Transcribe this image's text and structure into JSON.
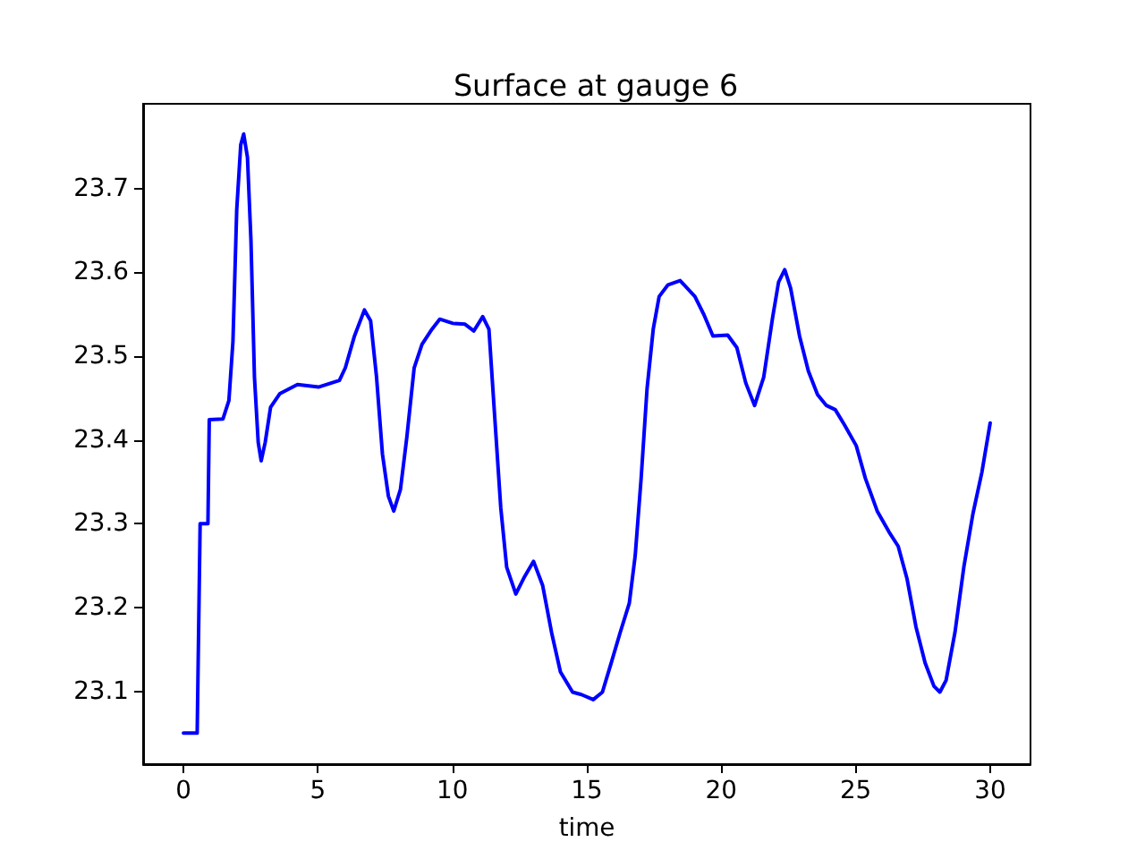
{
  "chart_data": {
    "type": "line",
    "title": "Surface at gauge 6",
    "xlabel": "time",
    "x": [
      0,
      0.51,
      0.62,
      0.91,
      0.96,
      1.47,
      1.69,
      1.84,
      1.98,
      2.13,
      2.24,
      2.38,
      2.51,
      2.64,
      2.78,
      2.89,
      3.04,
      3.24,
      3.58,
      4.24,
      5.02,
      5.8,
      6.02,
      6.36,
      6.73,
      6.96,
      7.18,
      7.4,
      7.62,
      7.82,
      8.07,
      8.31,
      8.58,
      8.87,
      9.24,
      9.53,
      10.02,
      10.47,
      10.8,
      11.13,
      11.36,
      11.58,
      11.8,
      12.02,
      12.36,
      12.69,
      13.02,
      13.36,
      13.69,
      14.02,
      14.47,
      14.8,
      15.24,
      15.58,
      15.91,
      16.24,
      16.58,
      16.8,
      17.02,
      17.24,
      17.47,
      17.69,
      18.02,
      18.47,
      19.02,
      19.36,
      19.69,
      20.24,
      20.58,
      20.91,
      21.24,
      21.58,
      21.91,
      22.13,
      22.36,
      22.58,
      22.91,
      23.24,
      23.58,
      23.91,
      24.24,
      24.58,
      25.02,
      25.36,
      25.8,
      26.24,
      26.58,
      26.91,
      27.24,
      27.58,
      27.91,
      28.13,
      28.36,
      28.69,
      29.02,
      29.36,
      29.69,
      30
    ],
    "values": [
      23.05,
      23.05,
      23.3,
      23.3,
      23.424,
      23.425,
      23.447,
      23.517,
      23.674,
      23.752,
      23.765,
      23.737,
      23.638,
      23.475,
      23.397,
      23.375,
      23.397,
      23.439,
      23.455,
      23.466,
      23.463,
      23.471,
      23.486,
      23.524,
      23.555,
      23.542,
      23.475,
      23.383,
      23.333,
      23.315,
      23.341,
      23.404,
      23.486,
      23.514,
      23.532,
      23.544,
      23.539,
      23.538,
      23.53,
      23.547,
      23.532,
      23.425,
      23.319,
      23.248,
      23.216,
      23.237,
      23.255,
      23.226,
      23.17,
      23.123,
      23.099,
      23.096,
      23.09,
      23.099,
      23.134,
      23.17,
      23.205,
      23.262,
      23.354,
      23.461,
      23.532,
      23.571,
      23.585,
      23.59,
      23.571,
      23.549,
      23.524,
      23.525,
      23.51,
      23.468,
      23.441,
      23.475,
      23.546,
      23.588,
      23.603,
      23.581,
      23.524,
      23.482,
      23.454,
      23.441,
      23.436,
      23.418,
      23.393,
      23.354,
      23.315,
      23.29,
      23.273,
      23.234,
      23.177,
      23.134,
      23.106,
      23.099,
      23.113,
      23.17,
      23.248,
      23.312,
      23.361,
      23.42
    ],
    "color": "#0000ff",
    "xlim": [
      -1.5,
      31.5
    ],
    "xticks": [
      0,
      5,
      10,
      15,
      20,
      25,
      30
    ],
    "ylim": [
      23.013,
      23.801
    ],
    "yticks": [
      23.1,
      23.2,
      23.3,
      23.4,
      23.5,
      23.6,
      23.7
    ],
    "grid": false,
    "marker": "none",
    "line_style": "solid"
  }
}
